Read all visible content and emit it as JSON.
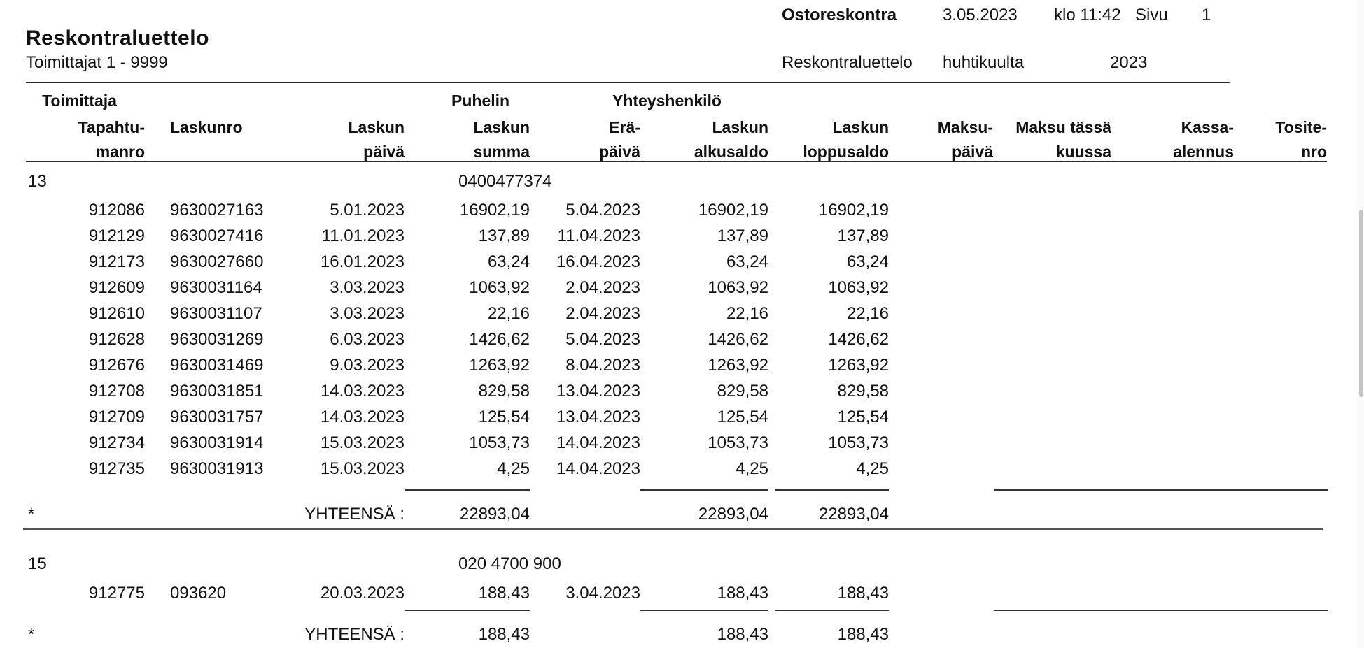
{
  "report_header": {
    "app_title": "Ostoreskontra",
    "print_date": "3.05.2023",
    "time": "klo 11:42",
    "page_label": "Sivu",
    "page_number": "1",
    "title": "Reskontraluettelo",
    "subtitle": "Toimittajat 1 - 9999",
    "report_name": "Reskontraluettelo",
    "period": "huhtikuulta",
    "year": "2023"
  },
  "group_headers": {
    "toimittaja": "Toimittaja",
    "puhelin": "Puhelin",
    "yhteyshenkilo": "Yhteyshenkilö"
  },
  "columns": [
    {
      "l1": "Tapahtu-",
      "l2": "manro"
    },
    {
      "l1": "Laskunro",
      "l2": ""
    },
    {
      "l1": "Laskun",
      "l2": "päivä"
    },
    {
      "l1": "Laskun",
      "l2": "summa"
    },
    {
      "l1": "Erä-",
      "l2": "päivä"
    },
    {
      "l1": "Laskun",
      "l2": "alkusaldo"
    },
    {
      "l1": "Laskun",
      "l2": "loppusaldo"
    },
    {
      "l1": "Maksu-",
      "l2": "päivä"
    },
    {
      "l1": "Maksu tässä",
      "l2": "kuussa"
    },
    {
      "l1": "Kassa-",
      "l2": "alennus"
    },
    {
      "l1": "Tosite-",
      "l2": "nro"
    }
  ],
  "suppliers": [
    {
      "number": "13",
      "phone": "0400477374",
      "rows": [
        [
          "912086",
          "9630027163",
          "5.01.2023",
          "16902,19",
          "5.04.2023",
          "16902,19",
          "16902,19"
        ],
        [
          "912129",
          "9630027416",
          "11.01.2023",
          "137,89",
          "11.04.2023",
          "137,89",
          "137,89"
        ],
        [
          "912173",
          "9630027660",
          "16.01.2023",
          "63,24",
          "16.04.2023",
          "63,24",
          "63,24"
        ],
        [
          "912609",
          "9630031164",
          "3.03.2023",
          "1063,92",
          "2.04.2023",
          "1063,92",
          "1063,92"
        ],
        [
          "912610",
          "9630031107",
          "3.03.2023",
          "22,16",
          "2.04.2023",
          "22,16",
          "22,16"
        ],
        [
          "912628",
          "9630031269",
          "6.03.2023",
          "1426,62",
          "5.04.2023",
          "1426,62",
          "1426,62"
        ],
        [
          "912676",
          "9630031469",
          "9.03.2023",
          "1263,92",
          "8.04.2023",
          "1263,92",
          "1263,92"
        ],
        [
          "912708",
          "9630031851",
          "14.03.2023",
          "829,58",
          "13.04.2023",
          "829,58",
          "829,58"
        ],
        [
          "912709",
          "9630031757",
          "14.03.2023",
          "125,54",
          "13.04.2023",
          "125,54",
          "125,54"
        ],
        [
          "912734",
          "9630031914",
          "15.03.2023",
          "1053,73",
          "14.04.2023",
          "1053,73",
          "1053,73"
        ],
        [
          "912735",
          "9630031913",
          "15.03.2023",
          "4,25",
          "14.04.2023",
          "4,25",
          "4,25"
        ]
      ],
      "total_row": {
        "marker": "*",
        "label": "YHTEENSÄ :",
        "summa": "22893,04",
        "alkusaldo": "22893,04",
        "loppusaldo": "22893,04"
      }
    },
    {
      "number": "15",
      "phone": "020 4700 900",
      "rows": [
        [
          "912775",
          "093620",
          "20.03.2023",
          "188,43",
          "3.04.2023",
          "188,43",
          "188,43"
        ]
      ],
      "total_row": {
        "marker": "*",
        "label": "YHTEENSÄ :",
        "summa": "188,43",
        "alkusaldo": "188,43",
        "loppusaldo": "188,43"
      }
    }
  ]
}
